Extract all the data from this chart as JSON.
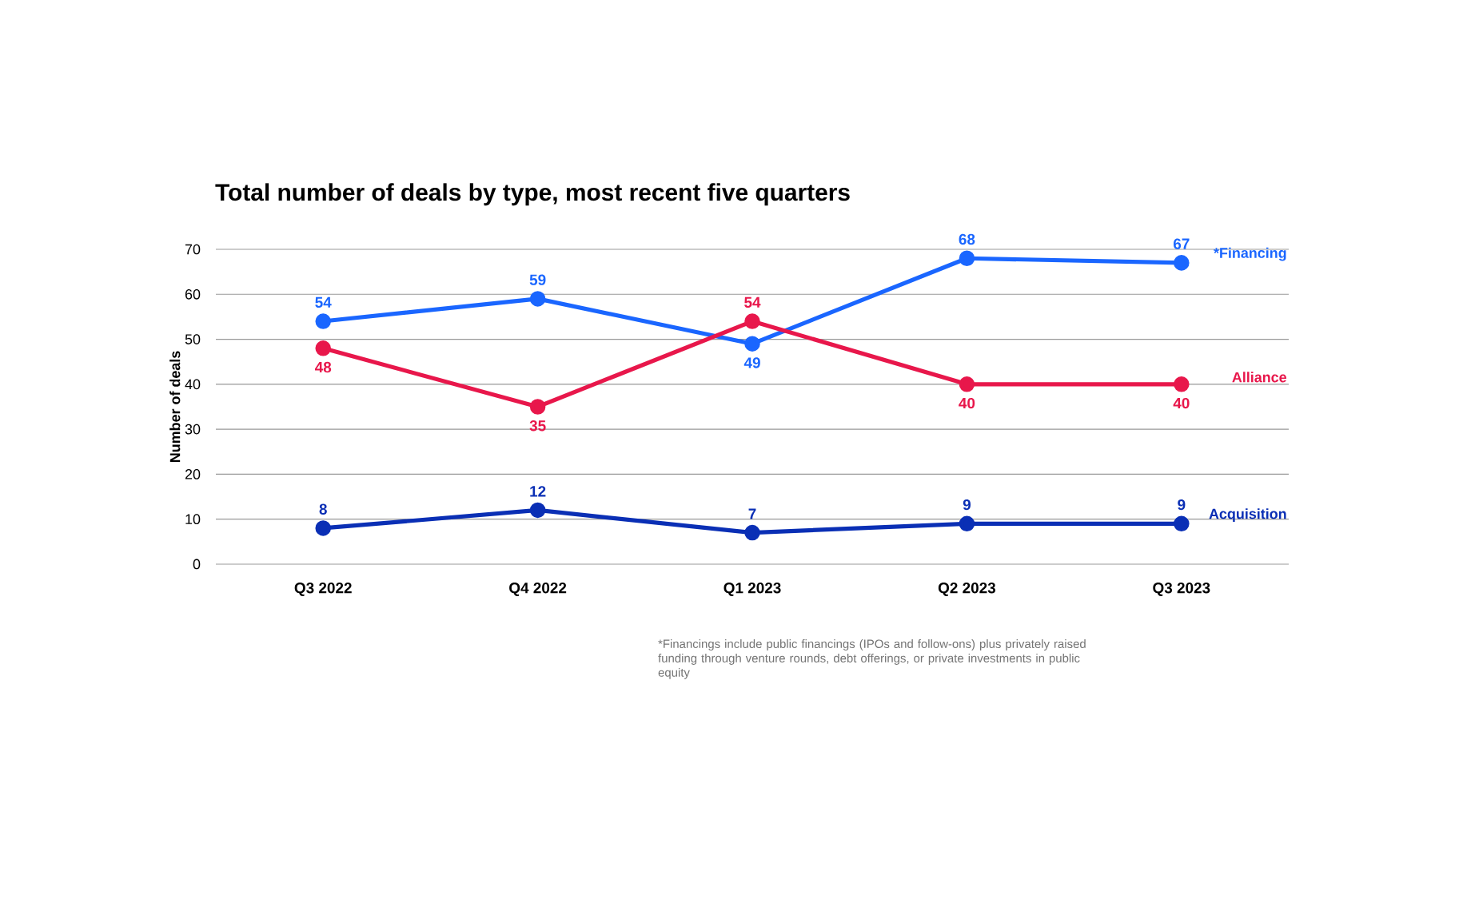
{
  "chart_data": {
    "type": "line",
    "title": "Total number of deals by type, most recent five quarters",
    "ylabel": "Number of deals",
    "categories": [
      "Q3 2022",
      "Q4 2022",
      "Q1 2023",
      "Q2 2023",
      "Q3 2023"
    ],
    "series": [
      {
        "name": "*Financing",
        "color": "#1a66ff",
        "values": [
          54,
          59,
          49,
          68,
          67
        ]
      },
      {
        "name": "Alliance",
        "color": "#e8174b",
        "values": [
          48,
          35,
          54,
          40,
          40
        ]
      },
      {
        "name": "Acquisition",
        "color": "#0a2fb5",
        "values": [
          8,
          12,
          7,
          9,
          9
        ]
      }
    ],
    "ylim": [
      0,
      70
    ],
    "yticks": [
      0,
      10,
      20,
      30,
      40,
      50,
      60,
      70
    ],
    "grid": "y",
    "data_labels": true,
    "marker": "circle",
    "annotations": [
      "*Financings include public financings (IPOs and follow-ons) plus privately raised funding through venture rounds, debt offerings, or private investments in public equity"
    ]
  }
}
